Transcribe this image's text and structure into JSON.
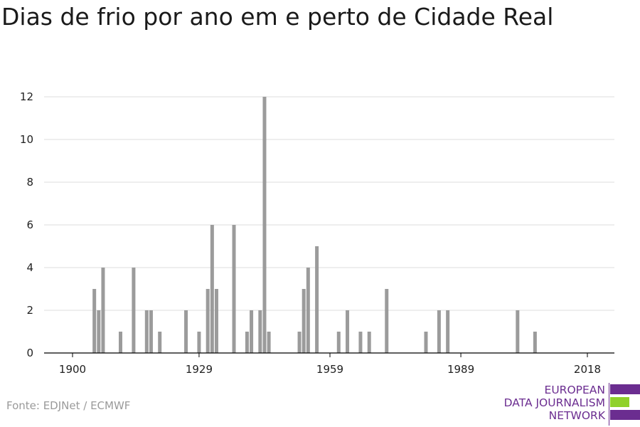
{
  "title": "Dias de frio por ano em e perto de Cidade Real",
  "source": "Fonte: EDJNet / ECMWF",
  "branding": {
    "line1": "EUROPEAN",
    "line2": "DATA JOURNALISM",
    "line3": "NETWORK",
    "colors": {
      "purple": "#6b2d90",
      "green": "#8fd12a"
    }
  },
  "colors": {
    "bar": "#9b9b9b",
    "grid": "#dddddd",
    "axis": "#000000"
  },
  "chart_data": {
    "type": "bar",
    "title": "Dias de frio por ano em e perto de Cidade Real",
    "xlabel": "",
    "ylabel": "",
    "xlim": [
      1900,
      2018
    ],
    "ylim": [
      0,
      12
    ],
    "xticks": [
      1900,
      1929,
      1959,
      1989,
      2018
    ],
    "yticks": [
      0,
      2,
      4,
      6,
      8,
      10,
      12
    ],
    "grid": true,
    "x": [
      1905,
      1906,
      1907,
      1911,
      1914,
      1917,
      1918,
      1920,
      1926,
      1929,
      1931,
      1932,
      1933,
      1937,
      1940,
      1941,
      1943,
      1944,
      1945,
      1952,
      1953,
      1954,
      1956,
      1961,
      1963,
      1966,
      1968,
      1972,
      1981,
      1984,
      1986,
      2002,
      2006
    ],
    "values": [
      3,
      2,
      4,
      1,
      4,
      2,
      2,
      1,
      2,
      1,
      3,
      6,
      3,
      6,
      1,
      2,
      2,
      12,
      1,
      1,
      3,
      4,
      5,
      1,
      2,
      1,
      1,
      3,
      1,
      2,
      2,
      2,
      1
    ]
  }
}
